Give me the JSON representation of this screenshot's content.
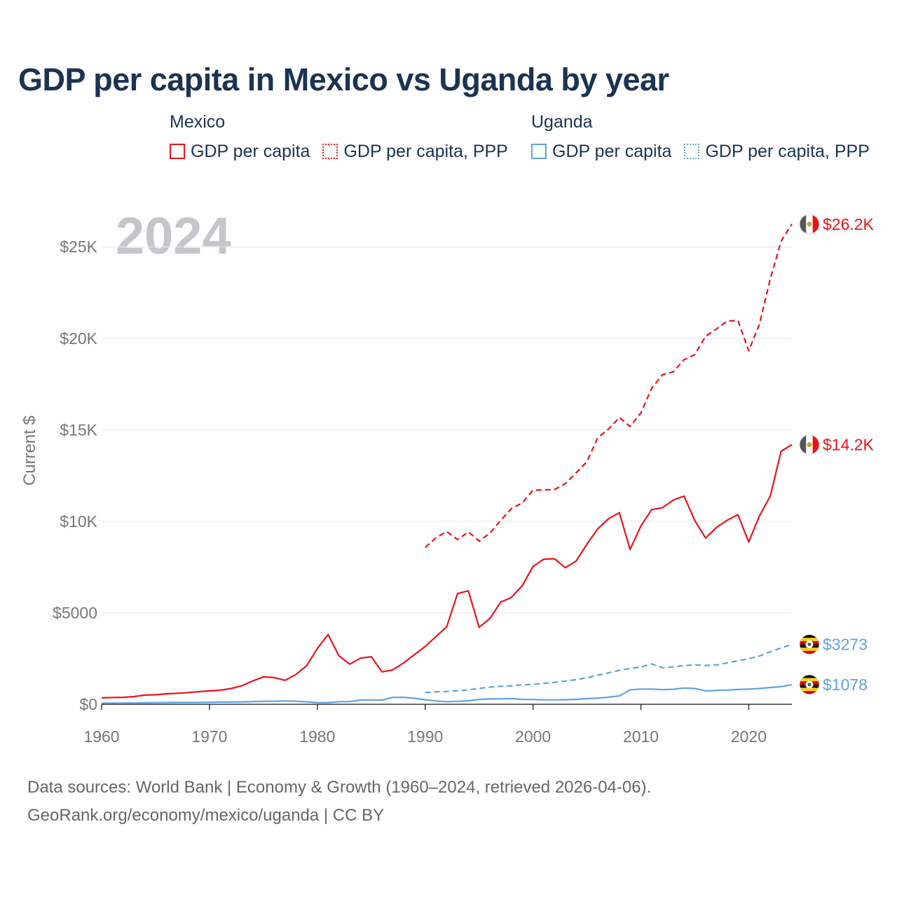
{
  "title": "GDP per capita in Mexico vs Uganda by year",
  "legend": {
    "groups": [
      {
        "name": "Mexico",
        "items": [
          {
            "label": "GDP per capita",
            "style": "solid",
            "color": "#e8141b"
          },
          {
            "label": "GDP per capita, PPP",
            "style": "dotted",
            "color": "#e8141b"
          }
        ]
      },
      {
        "name": "Uganda",
        "items": [
          {
            "label": "GDP per capita",
            "style": "solid",
            "color": "#5fa3e0"
          },
          {
            "label": "GDP per capita, PPP",
            "style": "dotted",
            "color": "#5fa3e0"
          }
        ]
      }
    ]
  },
  "chart_data": {
    "type": "line",
    "year_watermark": "2024",
    "ylabel": "Current $",
    "xlim": [
      1960,
      2024
    ],
    "ylim": [
      0,
      27000
    ],
    "x_ticks": [
      1960,
      1970,
      1980,
      1990,
      2000,
      2010,
      2020
    ],
    "y_ticks": [
      {
        "value": 0,
        "label": "$0"
      },
      {
        "value": 5000,
        "label": "$5000"
      },
      {
        "value": 10000,
        "label": "$10K"
      },
      {
        "value": 15000,
        "label": "$15K"
      },
      {
        "value": 20000,
        "label": "$20K"
      },
      {
        "value": 25000,
        "label": "$25K"
      }
    ],
    "series": [
      {
        "name": "Mexico GDP per capita",
        "country": "Mexico",
        "color": "#e8141b",
        "dashed": false,
        "end_label": "$14.2K",
        "flag": "mexico",
        "x": [
          1960,
          1961,
          1962,
          1963,
          1964,
          1965,
          1966,
          1967,
          1968,
          1969,
          1970,
          1971,
          1972,
          1973,
          1974,
          1975,
          1976,
          1977,
          1978,
          1979,
          1980,
          1981,
          1982,
          1983,
          1984,
          1985,
          1986,
          1987,
          1988,
          1989,
          1990,
          1991,
          1992,
          1993,
          1994,
          1995,
          1996,
          1997,
          1998,
          1999,
          2000,
          2001,
          2002,
          2003,
          2004,
          2005,
          2006,
          2007,
          2008,
          2009,
          2010,
          2011,
          2012,
          2013,
          2014,
          2015,
          2016,
          2017,
          2018,
          2019,
          2020,
          2021,
          2022,
          2023,
          2024
        ],
        "values": [
          350,
          370,
          380,
          420,
          500,
          520,
          570,
          600,
          640,
          690,
          730,
          770,
          860,
          1010,
          1270,
          1500,
          1460,
          1310,
          1620,
          2100,
          3050,
          3810,
          2650,
          2190,
          2520,
          2600,
          1770,
          1880,
          2260,
          2710,
          3160,
          3700,
          4240,
          6050,
          6200,
          4200,
          4690,
          5580,
          5840,
          6480,
          7530,
          7930,
          7950,
          7460,
          7830,
          8750,
          9590,
          10140,
          10470,
          8460,
          9740,
          10640,
          10740,
          11160,
          11380,
          10040,
          9080,
          9660,
          10060,
          10360,
          8870,
          10300,
          11380,
          13830,
          14190
        ]
      },
      {
        "name": "Mexico GDP per capita, PPP",
        "country": "Mexico",
        "color": "#e8141b",
        "dashed": true,
        "end_label": "$26.2K",
        "flag": "mexico",
        "x": [
          1990,
          1991,
          1992,
          1993,
          1994,
          1995,
          1996,
          1997,
          1998,
          1999,
          2000,
          2001,
          2002,
          2003,
          2004,
          2005,
          2006,
          2007,
          2008,
          2009,
          2010,
          2011,
          2012,
          2013,
          2014,
          2015,
          2016,
          2017,
          2018,
          2019,
          2020,
          2021,
          2022,
          2023,
          2024
        ],
        "values": [
          8570,
          9100,
          9440,
          9000,
          9420,
          8920,
          9350,
          10050,
          10700,
          11000,
          11700,
          11720,
          11740,
          12060,
          12650,
          13260,
          14570,
          15040,
          15680,
          15180,
          15920,
          17270,
          18010,
          18170,
          18830,
          19110,
          20110,
          20510,
          20940,
          20980,
          19320,
          20780,
          23250,
          25310,
          26240
        ]
      },
      {
        "name": "Uganda GDP per capita",
        "country": "Uganda",
        "color": "#5fa3e0",
        "dashed": false,
        "end_label": "$1078",
        "flag": "uganda",
        "x": [
          1960,
          1961,
          1962,
          1963,
          1964,
          1965,
          1966,
          1967,
          1968,
          1969,
          1970,
          1971,
          1972,
          1973,
          1974,
          1975,
          1976,
          1977,
          1978,
          1979,
          1980,
          1981,
          1982,
          1983,
          1984,
          1985,
          1986,
          1987,
          1988,
          1989,
          1990,
          1991,
          1992,
          1993,
          1994,
          1995,
          1996,
          1997,
          1998,
          1999,
          2000,
          2001,
          2002,
          2003,
          2004,
          2005,
          2006,
          2007,
          2008,
          2009,
          2010,
          2011,
          2012,
          2013,
          2014,
          2015,
          2016,
          2017,
          2018,
          2019,
          2020,
          2021,
          2022,
          2023,
          2024
        ],
        "values": [
          62,
          64,
          66,
          70,
          80,
          88,
          95,
          98,
          100,
          104,
          110,
          118,
          120,
          130,
          150,
          160,
          170,
          185,
          170,
          135,
          95,
          90,
          140,
          150,
          230,
          240,
          230,
          380,
          380,
          330,
          250,
          180,
          140,
          160,
          190,
          270,
          290,
          300,
          310,
          270,
          260,
          240,
          240,
          250,
          270,
          310,
          330,
          390,
          460,
          790,
          830,
          830,
          800,
          820,
          890,
          860,
          730,
          760,
          780,
          810,
          830,
          860,
          920,
          960,
          1078
        ]
      },
      {
        "name": "Uganda GDP per capita, PPP",
        "country": "Uganda",
        "color": "#5fa3e0",
        "dashed": true,
        "end_label": "$3273",
        "flag": "uganda",
        "x": [
          1990,
          1991,
          1992,
          1993,
          1994,
          1995,
          1996,
          1997,
          1998,
          1999,
          2000,
          2001,
          2002,
          2003,
          2004,
          2005,
          2006,
          2007,
          2008,
          2009,
          2010,
          2011,
          2012,
          2013,
          2014,
          2015,
          2016,
          2017,
          2018,
          2019,
          2020,
          2021,
          2022,
          2023,
          2024
        ],
        "values": [
          640,
          680,
          700,
          740,
          790,
          870,
          940,
          980,
          1010,
          1060,
          1090,
          1140,
          1200,
          1270,
          1350,
          1450,
          1590,
          1720,
          1850,
          1960,
          2030,
          2210,
          2000,
          2040,
          2110,
          2160,
          2120,
          2150,
          2260,
          2380,
          2490,
          2640,
          2870,
          3080,
          3273
        ]
      }
    ]
  },
  "footer": {
    "line1": "Data sources: World Bank | Economy & Growth (1960–2024, retrieved 2026-04-06).",
    "line2": "GeoRank.org/economy/mexico/uganda | CC BY"
  }
}
